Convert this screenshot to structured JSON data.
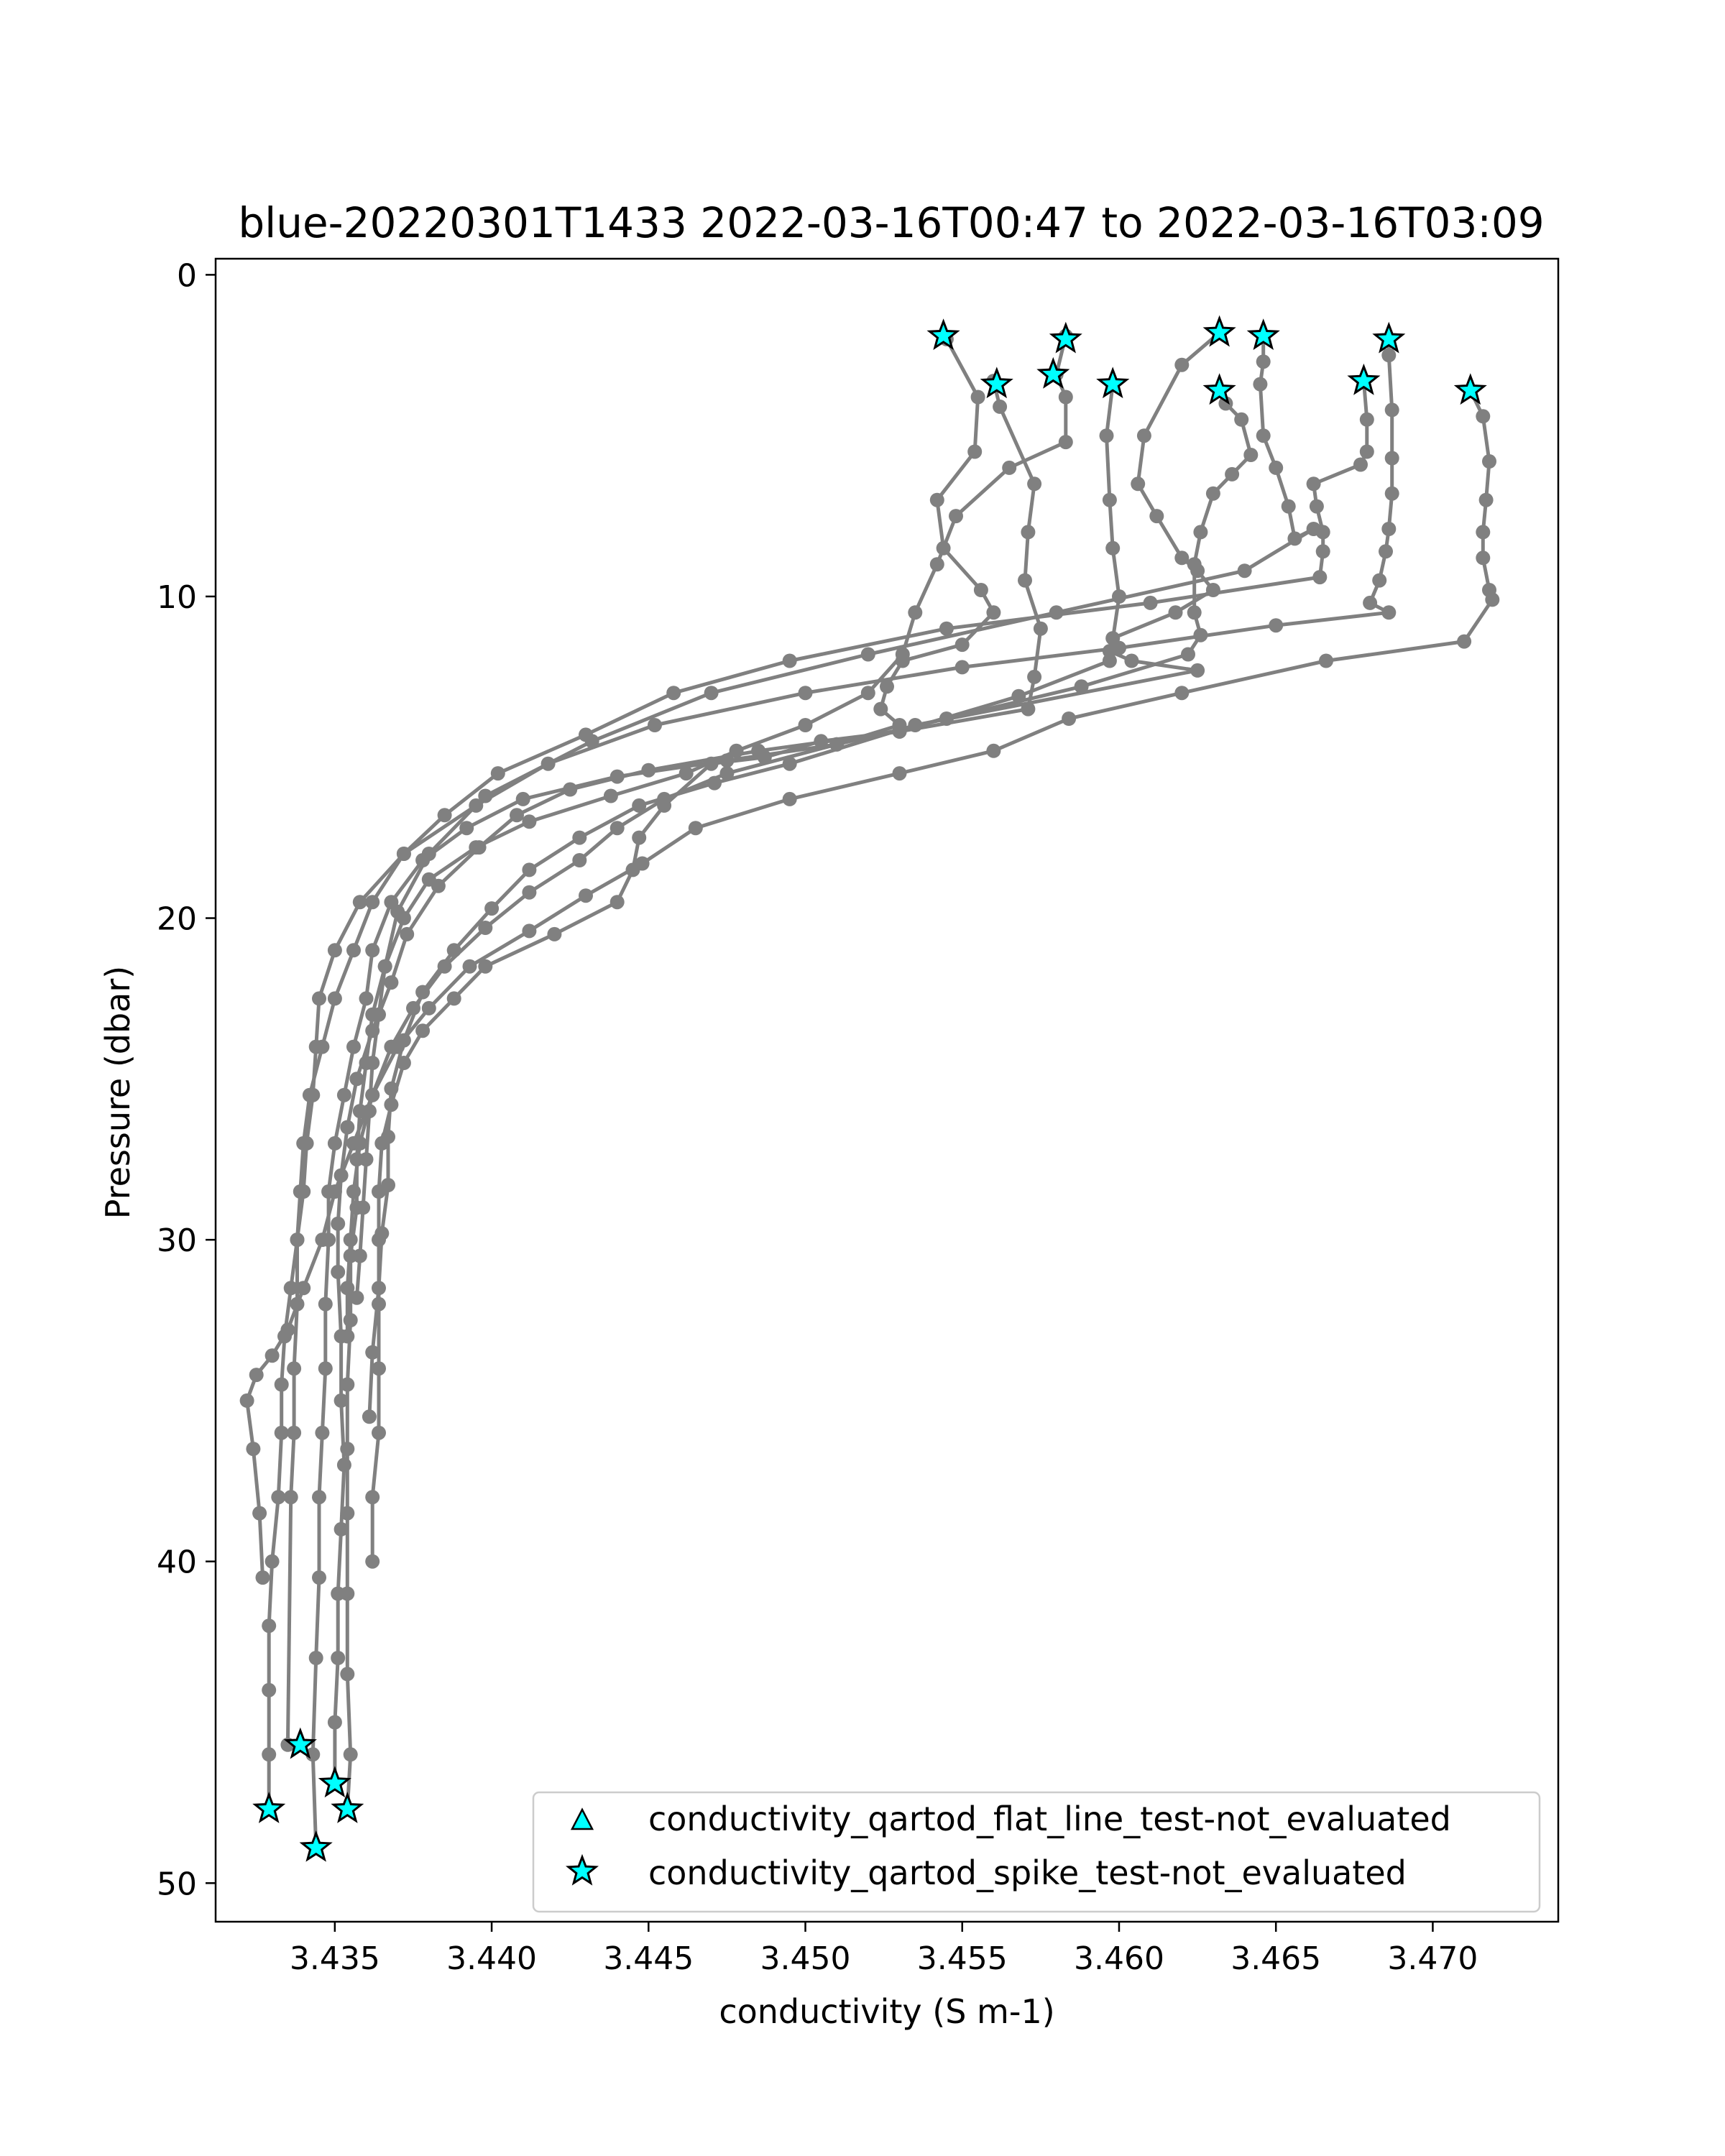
{
  "chart_data": {
    "type": "scatter",
    "title": "blue-20220301T1433 2022-03-16T00:47 to 2022-03-16T03:09",
    "xlabel": "conductivity (S m-1)",
    "ylabel": "Pressure (dbar)",
    "xlim": [
      3.4312,
      3.474
    ],
    "ylim": [
      51.2,
      -0.5
    ],
    "y_inverted": true,
    "grid": false,
    "xticks": [
      3.435,
      3.44,
      3.445,
      3.45,
      3.455,
      3.46,
      3.465,
      3.47
    ],
    "xtick_labels": [
      "3.435",
      "3.440",
      "3.445",
      "3.450",
      "3.455",
      "3.460",
      "3.465",
      "3.470"
    ],
    "yticks": [
      0,
      10,
      20,
      30,
      40,
      50
    ],
    "ytick_labels": [
      "0",
      "10",
      "20",
      "30",
      "40",
      "50"
    ],
    "profile_color": "#808080",
    "flag_color": "#00ffff",
    "legend_placement": "lower right",
    "legend": [
      {
        "marker": "triangle",
        "label": "conductivity_qartod_flat_line_test-not_evaluated"
      },
      {
        "marker": "star",
        "label": "conductivity_qartod_spike_test-not_evaluated"
      }
    ],
    "series": [
      {
        "x": [
          3.4545,
          3.4555,
          3.4554,
          3.4542,
          3.4544,
          3.4556,
          3.456,
          3.455,
          3.4531,
          3.4526,
          3.4524,
          3.453,
          3.451,
          3.4475,
          3.444,
          3.441,
          3.4392,
          3.4378,
          3.4368,
          3.4362,
          3.436,
          3.4356,
          3.4353,
          3.435,
          3.4348,
          3.4348,
          3.4347,
          3.4347,
          3.4346,
          3.4345,
          3.4345,
          3.4344,
          3.4343,
          3.4344
        ],
        "y": [
          2.0,
          3.8,
          5.5,
          7.0,
          8.5,
          9.8,
          10.5,
          11.5,
          12.0,
          12.8,
          13.5,
          14.0,
          14.6,
          15.1,
          15.6,
          16.3,
          17.2,
          18.2,
          19.5,
          21.0,
          22.5,
          24.0,
          25.5,
          27.0,
          28.5,
          30.0,
          32.0,
          34.0,
          36.0,
          38.0,
          40.5,
          43.0,
          46.0,
          48.9
        ]
      },
      {
        "x": [
          3.456,
          3.4562,
          3.4573,
          3.4571,
          3.457,
          3.4575,
          3.4573,
          3.4571,
          3.453,
          3.4485,
          3.445,
          3.4425,
          3.4408,
          3.4396,
          3.4383,
          3.4373,
          3.4368,
          3.4362,
          3.4357,
          3.4354,
          3.4352,
          3.4351,
          3.4351,
          3.4352,
          3.4352,
          3.4353,
          3.4352,
          3.4351,
          3.4351,
          3.435,
          3.435
        ],
        "y": [
          3.3,
          4.1,
          6.5,
          8.0,
          9.5,
          11.0,
          12.5,
          13.5,
          14.2,
          14.8,
          15.4,
          16.0,
          16.8,
          17.8,
          19.0,
          20.5,
          22.0,
          23.5,
          25.0,
          26.5,
          28.0,
          29.5,
          31.0,
          33.0,
          35.0,
          37.0,
          39.0,
          41.0,
          43.0,
          45.0,
          46.9
        ]
      },
      {
        "x": [
          3.4583,
          3.458,
          3.4583,
          3.4583,
          3.4565,
          3.4548,
          3.4542,
          3.4535,
          3.4531,
          3.452,
          3.45,
          3.4478,
          3.4462,
          3.4438,
          3.4412,
          3.4395,
          3.438,
          3.4372,
          3.4366,
          3.4362,
          3.436,
          3.4358,
          3.4357,
          3.4357,
          3.4355,
          3.4355,
          3.4354,
          3.4354,
          3.4354,
          3.4354,
          3.4354,
          3.4355,
          3.4354
        ],
        "y": [
          1.9,
          3.1,
          3.8,
          5.2,
          6.0,
          7.5,
          9.0,
          10.5,
          11.8,
          13.0,
          14.0,
          14.8,
          15.5,
          16.2,
          17.0,
          17.8,
          18.8,
          20.0,
          21.5,
          23.0,
          24.5,
          26.0,
          27.5,
          29.0,
          30.5,
          32.5,
          34.5,
          36.5,
          38.5,
          41.0,
          43.5,
          46.0,
          47.7
        ]
      },
      {
        "x": [
          3.4598,
          3.4596,
          3.4597,
          3.4598,
          3.46,
          3.4597,
          3.4568,
          3.453,
          3.4505,
          3.4487,
          3.447,
          3.4455,
          3.4447,
          3.4445,
          3.444,
          3.442,
          3.4398,
          3.4388,
          3.4378,
          3.4372,
          3.4368,
          3.4365,
          3.4364,
          3.4364,
          3.4364,
          3.4364,
          3.4364,
          3.4362,
          3.4362
        ],
        "y": [
          3.4,
          5.0,
          7.0,
          8.5,
          10.0,
          12.0,
          13.1,
          14.2,
          14.5,
          15.0,
          15.2,
          16.5,
          17.5,
          18.5,
          19.5,
          20.5,
          21.5,
          22.5,
          23.5,
          24.5,
          25.8,
          27.0,
          28.5,
          30.0,
          32.0,
          34.0,
          36.0,
          38.0,
          40.0
        ]
      },
      {
        "x": [
          3.4632,
          3.462,
          3.4608,
          3.4606,
          3.4612,
          3.462,
          3.4625,
          3.463,
          3.4618,
          3.4598,
          3.4597,
          3.4604,
          3.4625,
          3.4535,
          3.4495,
          3.4471,
          3.4447,
          3.4428,
          3.4412,
          3.44,
          3.4388,
          3.4378,
          3.4372,
          3.4368,
          3.4367,
          3.4367,
          3.4365,
          3.4364,
          3.4362,
          3.4361
        ],
        "y": [
          1.8,
          2.8,
          5.0,
          6.5,
          7.5,
          8.8,
          9.2,
          9.8,
          10.5,
          11.3,
          11.7,
          12.0,
          12.3,
          14.0,
          15.2,
          15.8,
          16.5,
          17.5,
          18.5,
          19.7,
          21.0,
          22.3,
          23.8,
          25.3,
          26.8,
          28.3,
          29.8,
          31.5,
          33.5,
          35.5
        ]
      },
      {
        "x": [
          3.4632,
          3.4634,
          3.4639,
          3.4642,
          3.4636,
          3.463,
          3.4626,
          3.4624,
          3.4624,
          3.4626,
          3.4622,
          3.4588,
          3.4545,
          3.451,
          3.4475,
          3.4455,
          3.444,
          3.4428,
          3.4412,
          3.4398,
          3.4385,
          3.4375,
          3.4368,
          3.4362,
          3.4358,
          3.4356,
          3.4355,
          3.4354,
          3.4354
        ],
        "y": [
          3.6,
          4.0,
          4.5,
          5.6,
          6.2,
          6.8,
          8.0,
          9.0,
          10.5,
          11.2,
          11.8,
          12.8,
          13.8,
          14.6,
          15.5,
          16.3,
          17.2,
          18.2,
          19.2,
          20.3,
          21.5,
          22.8,
          24.0,
          25.5,
          27.0,
          28.5,
          30.0,
          31.5,
          33.0
        ]
      },
      {
        "x": [
          3.4646,
          3.4646,
          3.4645,
          3.4646,
          3.465,
          3.4654,
          3.4656,
          3.4662,
          3.464,
          3.458,
          3.452,
          3.447,
          3.4432,
          3.4398,
          3.438,
          3.437,
          3.4366,
          3.4364,
          3.4362,
          3.4361,
          3.436,
          3.4359,
          3.4358,
          3.4357
        ],
        "y": [
          1.9,
          2.7,
          3.4,
          5.0,
          6.0,
          7.2,
          8.2,
          7.9,
          9.2,
          10.5,
          11.8,
          13.0,
          14.5,
          16.2,
          18.0,
          19.8,
          21.5,
          23.0,
          24.5,
          26.0,
          27.5,
          29.0,
          30.5,
          31.8
        ]
      },
      {
        "x": [
          3.4678,
          3.4679,
          3.4679,
          3.4677,
          3.4662,
          3.4663,
          3.4665,
          3.4665,
          3.4664,
          3.461,
          3.4545,
          3.4495,
          3.4458,
          3.443,
          3.4402,
          3.4385,
          3.4372,
          3.4362,
          3.4356,
          3.435,
          3.4346,
          3.4342,
          3.434,
          3.4339,
          3.4338,
          3.4338,
          3.4337,
          3.4337,
          3.4336,
          3.4335
        ],
        "y": [
          3.3,
          4.5,
          5.5,
          5.9,
          6.5,
          7.2,
          8.0,
          8.6,
          9.4,
          10.2,
          11.0,
          12.0,
          13.0,
          14.3,
          15.5,
          16.8,
          18.0,
          19.5,
          21.0,
          22.5,
          24.0,
          25.5,
          27.0,
          28.5,
          30.0,
          32.0,
          34.0,
          36.0,
          38.0,
          45.7
        ]
      },
      {
        "x": [
          3.4686,
          3.4686,
          3.4687,
          3.4687,
          3.4687,
          3.4686,
          3.4685,
          3.4683,
          3.468,
          3.4686,
          3.465,
          3.46,
          3.455,
          3.45,
          3.4452,
          3.4418,
          3.4395,
          3.4372,
          3.4358,
          3.435,
          3.4345,
          3.4344,
          3.4343,
          3.4341,
          3.434,
          3.4338,
          3.4336,
          3.4334,
          3.4333,
          3.4333,
          3.4332,
          3.433,
          3.4329,
          3.4329,
          3.4329,
          3.4329
        ],
        "y": [
          2.0,
          2.5,
          4.2,
          5.7,
          6.8,
          7.9,
          8.6,
          9.5,
          10.2,
          10.5,
          10.9,
          11.6,
          12.2,
          13.0,
          14.0,
          15.2,
          16.5,
          18.0,
          19.5,
          21.0,
          22.5,
          24.0,
          25.5,
          27.0,
          28.5,
          30.0,
          31.5,
          33.0,
          34.5,
          36.0,
          38.0,
          40.0,
          42.0,
          44.0,
          46.0,
          47.7
        ]
      },
      {
        "x": [
          3.4712,
          3.4716,
          3.4718,
          3.4717,
          3.4716,
          3.4716,
          3.4718,
          3.4719,
          3.471,
          3.4666,
          3.462,
          3.4584,
          3.456,
          3.453,
          3.4495,
          3.4465,
          3.4448,
          3.443,
          3.4412,
          3.4393,
          3.438,
          3.437,
          3.4362,
          3.4356,
          3.435,
          3.4346,
          3.434,
          3.4335,
          3.433,
          3.4325,
          3.4322,
          3.4324,
          3.4326,
          3.4327
        ],
        "y": [
          3.6,
          4.4,
          5.8,
          7.0,
          8.0,
          8.8,
          9.8,
          10.1,
          11.4,
          12.0,
          13.0,
          13.8,
          14.8,
          15.5,
          16.3,
          17.2,
          18.3,
          19.3,
          20.4,
          21.5,
          22.8,
          24.0,
          25.5,
          27.0,
          28.5,
          30.0,
          31.5,
          32.8,
          33.6,
          34.2,
          35.0,
          36.5,
          38.5,
          40.5
        ]
      }
    ],
    "spike_test_not_evaluated": [
      {
        "x": 3.4544,
        "y": 1.9
      },
      {
        "x": 3.4561,
        "y": 3.4
      },
      {
        "x": 3.4583,
        "y": 2.0
      },
      {
        "x": 3.4579,
        "y": 3.1
      },
      {
        "x": 3.4598,
        "y": 3.4
      },
      {
        "x": 3.4632,
        "y": 1.8
      },
      {
        "x": 3.4632,
        "y": 3.6
      },
      {
        "x": 3.4646,
        "y": 1.9
      },
      {
        "x": 3.4678,
        "y": 3.3
      },
      {
        "x": 3.4686,
        "y": 2.0
      },
      {
        "x": 3.4712,
        "y": 3.6
      },
      {
        "x": 3.4339,
        "y": 45.7
      },
      {
        "x": 3.435,
        "y": 46.9
      },
      {
        "x": 3.4354,
        "y": 47.7
      },
      {
        "x": 3.4329,
        "y": 47.7
      },
      {
        "x": 3.4344,
        "y": 48.9
      }
    ],
    "flat_line_test_not_evaluated": []
  }
}
